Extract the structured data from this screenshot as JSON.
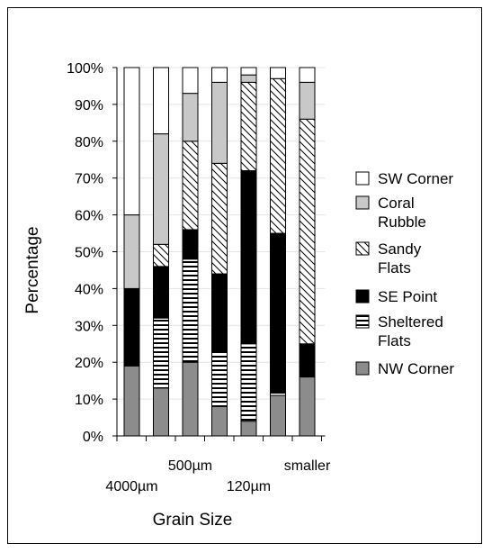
{
  "chart_data": {
    "type": "bar",
    "stacked": true,
    "percent": true,
    "title": "",
    "xlabel": "Grain Size",
    "ylabel": "Percentage",
    "ylim": [
      0,
      100
    ],
    "yticks": [
      "0%",
      "10%",
      "20%",
      "30%",
      "40%",
      "50%",
      "60%",
      "70%",
      "80%",
      "90%",
      "100%"
    ],
    "categories": [
      "4000µm",
      "",
      "500µm",
      "",
      "120µm",
      "",
      "smaller"
    ],
    "legend_position": "right",
    "series": [
      {
        "name": "NW Corner",
        "pattern": "solid-gray",
        "color": "#8c8c8c",
        "values": [
          19,
          13,
          20,
          8,
          4,
          11,
          16
        ]
      },
      {
        "name": "Sheltered Flats",
        "pattern": "horizontal-stripes",
        "color": "#ffffff",
        "values": [
          0,
          19,
          28,
          15,
          21,
          1,
          0
        ]
      },
      {
        "name": "SE Point",
        "pattern": "solid-black",
        "color": "#000000",
        "values": [
          21,
          14,
          8,
          21,
          47,
          43,
          9
        ]
      },
      {
        "name": "Sandy Flats",
        "pattern": "diagonal-hatch",
        "color": "#ffffff",
        "values": [
          0,
          6,
          24,
          30,
          24,
          42,
          61
        ]
      },
      {
        "name": "Coral Rubble",
        "pattern": "solid-light-gray",
        "color": "#c8c8c8",
        "values": [
          20,
          30,
          13,
          22,
          2,
          0,
          10
        ]
      },
      {
        "name": "SW Corner",
        "pattern": "solid-white",
        "color": "#ffffff",
        "values": [
          40,
          18,
          7,
          4,
          2,
          3,
          4
        ]
      }
    ],
    "legend": [
      {
        "series": "SW Corner",
        "lines": [
          "SW Corner"
        ]
      },
      {
        "series": "Coral Rubble",
        "lines": [
          "Coral",
          "Rubble"
        ]
      },
      {
        "series": "Sandy Flats",
        "lines": [
          "Sandy",
          "Flats"
        ]
      },
      {
        "series": "SE Point",
        "lines": [
          "SE Point"
        ]
      },
      {
        "series": "Sheltered Flats",
        "lines": [
          "Sheltered",
          "Flats"
        ]
      },
      {
        "series": "NW Corner",
        "lines": [
          "NW Corner"
        ]
      }
    ]
  }
}
